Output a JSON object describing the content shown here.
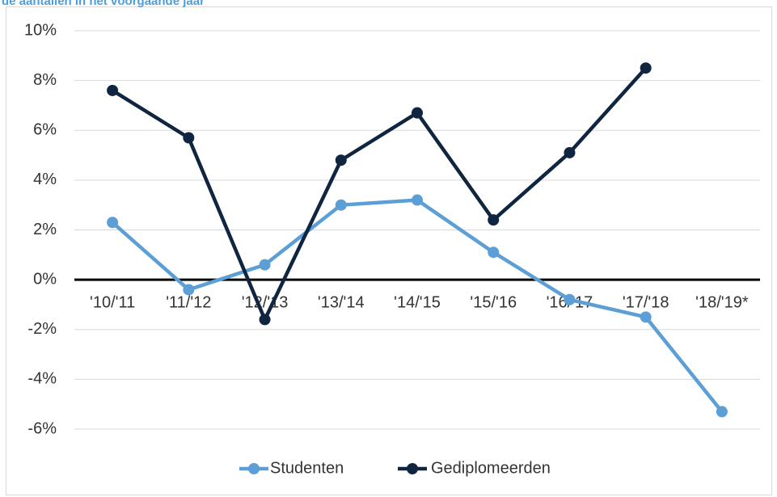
{
  "chart_data": {
    "type": "line",
    "title": "de aantallen in het voorgaande jaar",
    "categories": [
      "'10/'11",
      "'11/'12",
      "'12/'13",
      "'13/'14",
      "'14/'15",
      "'15/'16",
      "'16/'17",
      "'17/'18",
      "'18/'19*"
    ],
    "series": [
      {
        "name": "Studenten",
        "color": "#5b9fd6",
        "values": [
          2.3,
          -0.4,
          0.6,
          3.0,
          3.2,
          1.1,
          -0.8,
          -1.5,
          -5.3
        ]
      },
      {
        "name": "Gediplomeerden",
        "color": "#0f2540",
        "values": [
          7.6,
          5.7,
          -1.6,
          4.8,
          6.7,
          2.4,
          5.1,
          8.5,
          null
        ]
      }
    ],
    "ylim": [
      -6,
      10
    ],
    "yticks": [
      {
        "value": -6,
        "label": "-6%"
      },
      {
        "value": -4,
        "label": "-4%"
      },
      {
        "value": -2,
        "label": "-2%"
      },
      {
        "value": 0,
        "label": "0%"
      },
      {
        "value": 2,
        "label": "2%"
      },
      {
        "value": 4,
        "label": "4%"
      },
      {
        "value": 6,
        "label": "6%"
      },
      {
        "value": 8,
        "label": "8%"
      },
      {
        "value": 10,
        "label": "10%"
      }
    ],
    "grid": true,
    "legend": "bottom"
  }
}
